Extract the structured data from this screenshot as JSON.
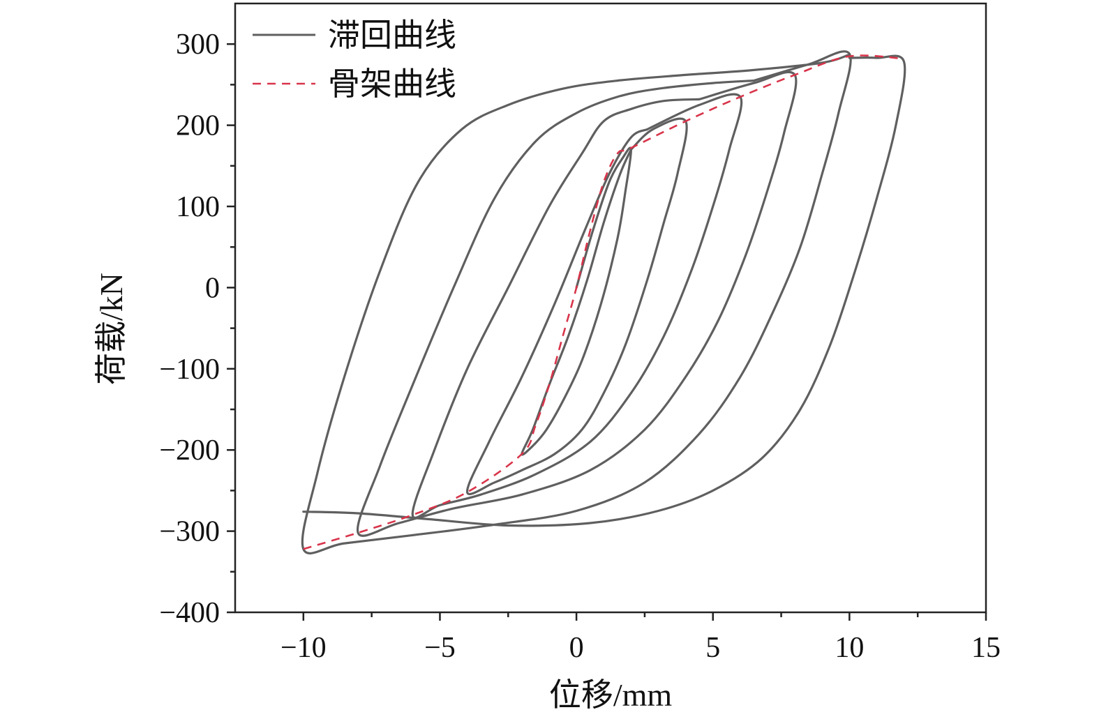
{
  "chart_data": {
    "type": "line",
    "title": "",
    "xlabel": "位移/mm",
    "ylabel": "荷载/kN",
    "xlim": [
      -12.5,
      15
    ],
    "ylim": [
      -400,
      350
    ],
    "xticks": [
      -10,
      -5,
      0,
      5,
      10,
      15
    ],
    "yticks": [
      -400,
      -300,
      -200,
      -100,
      0,
      100,
      200,
      300
    ],
    "x_tick_labels": [
      "−10",
      "−5",
      "0",
      "5",
      "10",
      "15"
    ],
    "y_tick_labels": [
      "−400",
      "−300",
      "−200",
      "−100",
      "0",
      "100",
      "200",
      "300"
    ],
    "grid": false,
    "legend_position": "top-left",
    "colors": {
      "hysteresis": "#5f5f5f",
      "skeleton": "#d8344a"
    },
    "series": [
      {
        "name": "滞回曲线",
        "style": "solid",
        "loops": [
          {
            "x": [
              0,
              0.6,
              1.2,
              1.7,
              2.0,
              1.8,
              1.5,
              0.9,
              0.2,
              -0.5,
              -1.1,
              -1.6,
              -2.0,
              -1.6,
              -1.0,
              -0.3,
              0.4,
              1.0,
              1.6,
              2.0
            ],
            "y": [
              0,
              70,
              130,
              160,
              170,
              120,
              60,
              -20,
              -90,
              -140,
              -175,
              -195,
              -205,
              -175,
              -120,
              -60,
              10,
              80,
              140,
              170
            ]
          },
          {
            "x": [
              2.0,
              2.8,
              4.0,
              3.7,
              3.2,
              2.6,
              1.8,
              1.0,
              0.2,
              -0.8,
              -2.0,
              -3.0,
              -4.0,
              -3.2,
              -2.0,
              -0.8,
              0.3,
              1.2,
              2.0,
              2.6
            ],
            "y": [
              170,
              195,
              205,
              140,
              80,
              10,
              -70,
              -130,
              -175,
              -205,
              -225,
              -240,
              -252,
              -190,
              -110,
              -20,
              70,
              140,
              185,
              195
            ]
          },
          {
            "x": [
              2.6,
              4.5,
              6.0,
              5.6,
              5.0,
              4.2,
              3.2,
              2.0,
              0.5,
              -1.5,
              -3.5,
              -5.0,
              -6.0,
              -5.2,
              -4.0,
              -2.5,
              -1.0,
              0.2,
              1.0,
              2.0,
              3.2,
              4.5
            ],
            "y": [
              195,
              225,
              235,
              170,
              100,
              20,
              -60,
              -130,
              -190,
              -230,
              -255,
              -268,
              -280,
              -200,
              -100,
              0,
              100,
              165,
              205,
              220,
              230,
              232
            ]
          },
          {
            "x": [
              4.5,
              6.5,
              8.0,
              7.6,
              7.0,
              6.2,
              5.2,
              4.0,
              2.5,
              0.5,
              -2.0,
              -4.5,
              -6.5,
              -8.0,
              -7.2,
              -6.0,
              -4.5,
              -3.0,
              -1.5,
              0,
              1.5,
              3.0,
              5.0,
              6.5
            ],
            "y": [
              232,
              252,
              262,
              190,
              120,
              40,
              -40,
              -110,
              -175,
              -225,
              -255,
              -272,
              -290,
              -302,
              -220,
              -120,
              0,
              110,
              180,
              215,
              235,
              245,
              252,
              255
            ]
          },
          {
            "x": [
              6.5,
              8.5,
              10.0,
              9.6,
              9.0,
              8.2,
              7.2,
              6.0,
              4.5,
              2.5,
              0,
              -3.0,
              -6.0,
              -8.5,
              -10.0,
              -9.5,
              -8.5,
              -7.2,
              -5.8,
              -4.2,
              -2.5,
              -0.5,
              1.5,
              4.0,
              6.5,
              9.0,
              10.0
            ],
            "y": [
              255,
              275,
              288,
              215,
              140,
              50,
              -30,
              -110,
              -180,
              -240,
              -275,
              -292,
              -305,
              -315,
              -322,
              -230,
              -110,
              20,
              130,
              195,
              225,
              245,
              255,
              262,
              268,
              277,
              287
            ]
          },
          {
            "x": [
              10.0,
              11.0,
              12.0,
              11.7,
              11.0,
              10.2,
              9.3,
              8.2,
              6.8,
              5.0,
              3.0,
              0.5,
              -2.5,
              -5.5,
              -8.0,
              -10.0
            ],
            "y": [
              283,
              283,
              278,
              200,
              110,
              20,
              -70,
              -150,
              -210,
              -250,
              -275,
              -290,
              -293,
              -285,
              -278,
              -276
            ]
          }
        ]
      },
      {
        "name": "骨架曲线",
        "style": "dashed",
        "x": [
          -10.0,
          -8.0,
          -6.0,
          -4.0,
          -2.0,
          -1.5,
          -1.0,
          -0.5,
          0,
          0.5,
          1.0,
          1.5,
          2.0,
          4.0,
          6.0,
          8.0,
          10.0,
          12.0
        ],
        "y": [
          -322,
          -302,
          -280,
          -252,
          -205,
          -170,
          -120,
          -60,
          0,
          70,
          130,
          165,
          172,
          205,
          235,
          262,
          285,
          282
        ]
      }
    ]
  }
}
